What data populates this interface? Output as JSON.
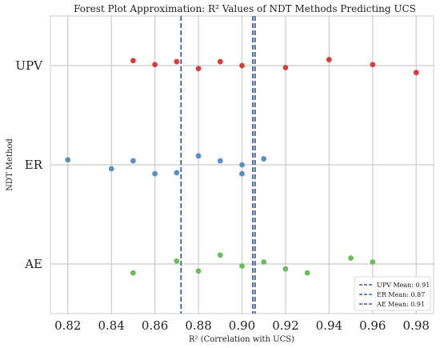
{
  "chart_data": {
    "type": "scatter",
    "title": "Forest Plot Approximation: R² Values of NDT Methods Predicting UCS",
    "xlabel": "R² (Correlation with UCS)",
    "ylabel": "NDT Method",
    "xlim": [
      0.812,
      0.988
    ],
    "x_ticks": [
      0.82,
      0.84,
      0.86,
      0.88,
      0.9,
      0.92,
      0.94,
      0.96,
      0.98
    ],
    "x_tick_labels": [
      "0.82",
      "0.84",
      "0.86",
      "0.88",
      "0.90",
      "0.92",
      "0.94",
      "0.96",
      "0.98"
    ],
    "categories": [
      "UPV",
      "ER",
      "AE"
    ],
    "grid": true,
    "legend_position": "bottom-right",
    "series": [
      {
        "category": "UPV",
        "color": "#d0413e",
        "points": [
          {
            "x": 0.85,
            "jitter": 0.05
          },
          {
            "x": 0.86,
            "jitter": 0.01
          },
          {
            "x": 0.87,
            "jitter": 0.04
          },
          {
            "x": 0.88,
            "jitter": -0.03
          },
          {
            "x": 0.89,
            "jitter": 0.04
          },
          {
            "x": 0.9,
            "jitter": 0.0
          },
          {
            "x": 0.92,
            "jitter": -0.02
          },
          {
            "x": 0.94,
            "jitter": 0.06
          },
          {
            "x": 0.96,
            "jitter": 0.01
          },
          {
            "x": 0.98,
            "jitter": -0.07
          }
        ]
      },
      {
        "category": "ER",
        "color": "#5a8fc0",
        "points": [
          {
            "x": 0.82,
            "jitter": 0.05
          },
          {
            "x": 0.84,
            "jitter": -0.04
          },
          {
            "x": 0.85,
            "jitter": 0.04
          },
          {
            "x": 0.86,
            "jitter": -0.09
          },
          {
            "x": 0.87,
            "jitter": -0.08
          },
          {
            "x": 0.88,
            "jitter": 0.09
          },
          {
            "x": 0.89,
            "jitter": 0.04
          },
          {
            "x": 0.9,
            "jitter": 0.0
          },
          {
            "x": 0.9,
            "jitter": -0.09
          },
          {
            "x": 0.91,
            "jitter": 0.06
          }
        ]
      },
      {
        "category": "AE",
        "color": "#6cbb5f",
        "points": [
          {
            "x": 0.85,
            "jitter": -0.09
          },
          {
            "x": 0.87,
            "jitter": 0.03
          },
          {
            "x": 0.88,
            "jitter": -0.07
          },
          {
            "x": 0.89,
            "jitter": 0.09
          },
          {
            "x": 0.9,
            "jitter": -0.02
          },
          {
            "x": 0.91,
            "jitter": 0.02
          },
          {
            "x": 0.92,
            "jitter": -0.05
          },
          {
            "x": 0.93,
            "jitter": -0.09
          },
          {
            "x": 0.95,
            "jitter": 0.06
          },
          {
            "x": 0.96,
            "jitter": 0.02
          }
        ]
      }
    ],
    "mean_lines": [
      {
        "label": "UPV Mean: 0.91",
        "x": 0.906,
        "color": "#3d5f94"
      },
      {
        "label": "ER Mean: 0.87",
        "x": 0.872,
        "color": "#3d5f94"
      },
      {
        "label": "AE Mean: 0.91",
        "x": 0.905,
        "color": "#3d5f94"
      }
    ]
  }
}
